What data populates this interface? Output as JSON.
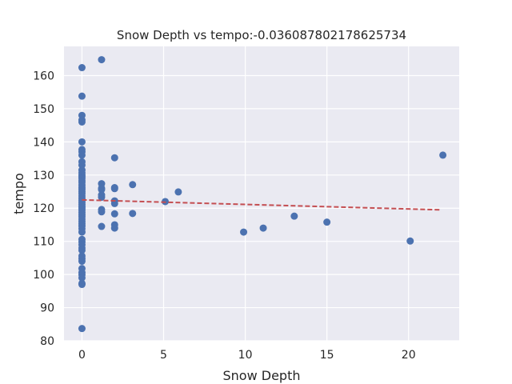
{
  "chart_data": {
    "type": "scatter",
    "title": "Snow Depth vs tempo:-0.036087802178625734",
    "xlabel": "Snow Depth",
    "ylabel": "tempo",
    "xlim": [
      -1.1,
      23.1
    ],
    "ylim": [
      80,
      168.8
    ],
    "xticks": [
      0,
      5,
      10,
      15,
      20
    ],
    "yticks": [
      80,
      90,
      100,
      110,
      120,
      130,
      140,
      150,
      160
    ],
    "grid": true,
    "colors": {
      "background": "#eaeaf2",
      "point": "#4c72b0",
      "trend": "#c44e52"
    },
    "trend_line": {
      "x": [
        0,
        22
      ],
      "y": [
        122.5,
        119.5
      ]
    },
    "points": [
      [
        0,
        162.4
      ],
      [
        0,
        153.8
      ],
      [
        0,
        148
      ],
      [
        0,
        146.6
      ],
      [
        0,
        146
      ],
      [
        0,
        140
      ],
      [
        0,
        137.7
      ],
      [
        0,
        137
      ],
      [
        0,
        136
      ],
      [
        0,
        134
      ],
      [
        0,
        133
      ],
      [
        0,
        131.5
      ],
      [
        0,
        130.7
      ],
      [
        0,
        130
      ],
      [
        0,
        129.5
      ],
      [
        0,
        129
      ],
      [
        0,
        128.3
      ],
      [
        0,
        127.8
      ],
      [
        0,
        127
      ],
      [
        0,
        126.3
      ],
      [
        0,
        125.7
      ],
      [
        0,
        125
      ],
      [
        0,
        124.4
      ],
      [
        0,
        123.7
      ],
      [
        0,
        123
      ],
      [
        0,
        122.4
      ],
      [
        0,
        121.8
      ],
      [
        0,
        121.1
      ],
      [
        0,
        120.5
      ],
      [
        0,
        120
      ],
      [
        0,
        119.4
      ],
      [
        0,
        118.7
      ],
      [
        0,
        118
      ],
      [
        0,
        117.4
      ],
      [
        0,
        116.7
      ],
      [
        0,
        116
      ],
      [
        0,
        115.3
      ],
      [
        0,
        114.6
      ],
      [
        0,
        113.8
      ],
      [
        0,
        112.8
      ],
      [
        0,
        110.6
      ],
      [
        0,
        109.8
      ],
      [
        0,
        109
      ],
      [
        0,
        108
      ],
      [
        0,
        107.3
      ],
      [
        0,
        105.6
      ],
      [
        0,
        104.8
      ],
      [
        0,
        104
      ],
      [
        0,
        101.8
      ],
      [
        0,
        100.6
      ],
      [
        0,
        99.9
      ],
      [
        0,
        99
      ],
      [
        0,
        97.3
      ],
      [
        0,
        97
      ],
      [
        0,
        83.7
      ],
      [
        1.2,
        164.8
      ],
      [
        1.2,
        127.4
      ],
      [
        1.2,
        126
      ],
      [
        1.2,
        125.6
      ],
      [
        1.2,
        124
      ],
      [
        1.2,
        123.3
      ],
      [
        1.2,
        119.6
      ],
      [
        1.2,
        118.9
      ],
      [
        1.2,
        114.5
      ],
      [
        2,
        135.2
      ],
      [
        2,
        126.2
      ],
      [
        2,
        125.9
      ],
      [
        2,
        122.2
      ],
      [
        2,
        121.4
      ],
      [
        2,
        118.3
      ],
      [
        2,
        115
      ],
      [
        2,
        114
      ],
      [
        3.1,
        127.1
      ],
      [
        3.1,
        118.4
      ],
      [
        5.1,
        122
      ],
      [
        5.9,
        124.9
      ],
      [
        9.9,
        112.8
      ],
      [
        11.1,
        114
      ],
      [
        13,
        117.6
      ],
      [
        15,
        115.8
      ],
      [
        20.1,
        110.1
      ],
      [
        22.1,
        136
      ]
    ]
  }
}
